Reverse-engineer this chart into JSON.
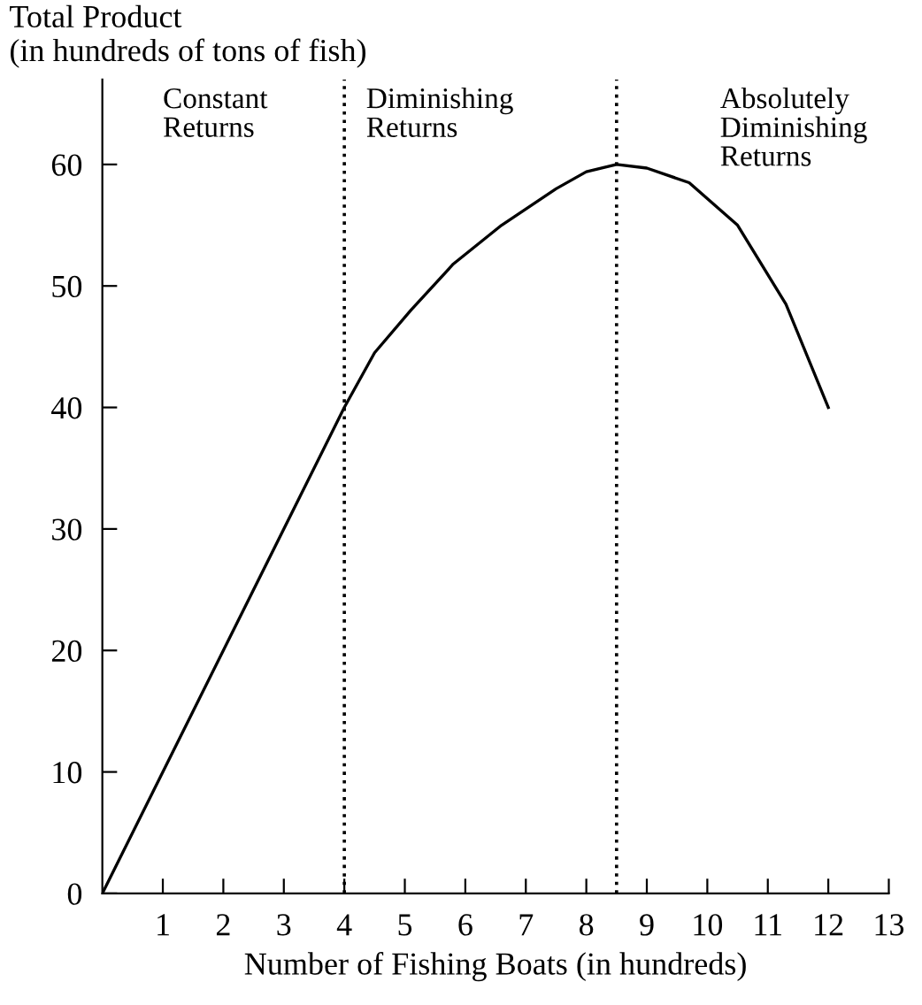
{
  "chart_data": {
    "type": "line",
    "ylabel": "Total Product\n(in hundreds of tons of fish)",
    "xlabel": "Number of Fishing Boats (in hundreds)",
    "x": [
      0,
      4,
      4.5,
      5.1,
      5.8,
      6.6,
      7.5,
      8.0,
      8.5,
      9.0,
      9.7,
      10.5,
      11.3,
      12
    ],
    "series": [
      {
        "color": "#000000",
        "values": [
          0,
          40,
          44.5,
          48,
          51.8,
          55,
          58,
          59.4,
          60,
          59.7,
          58.5,
          55,
          48.5,
          40
        ]
      }
    ],
    "xlim": [
      0,
      13
    ],
    "xticks": [
      1,
      2,
      3,
      4,
      5,
      6,
      7,
      8,
      9,
      10,
      11,
      12,
      13
    ],
    "ylim": [
      0,
      67
    ],
    "yticks": [
      0,
      10,
      20,
      30,
      40,
      50,
      60
    ],
    "ref_lines": [
      {
        "axis": "x",
        "value": 4,
        "line_style": "dotted",
        "color": "#000000"
      },
      {
        "axis": "x",
        "value": 8.5,
        "line_style": "dotted",
        "color": "#000000"
      }
    ],
    "annotations": [
      "Constant\nReturns",
      "Diminishing\nReturns",
      "Absolutely\nDiminishing\nReturns"
    ],
    "grid": false,
    "legend": false,
    "marker": "none",
    "line_style": "solid"
  }
}
